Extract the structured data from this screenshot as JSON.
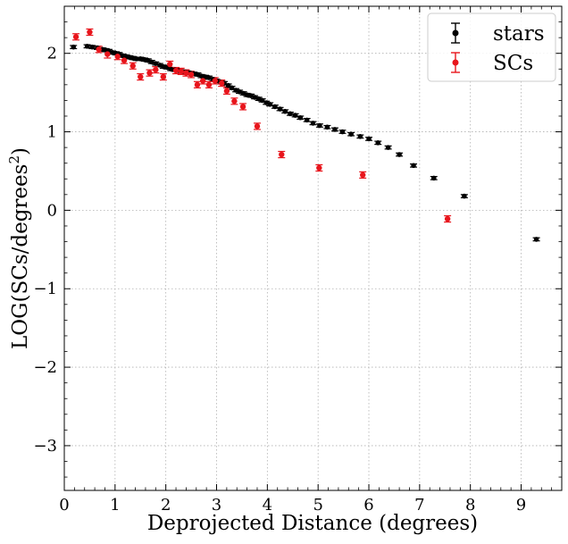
{
  "chart_data": {
    "type": "scatter",
    "xlabel": "Deprojected Distance (degrees)",
    "ylabel_main": "LOG(SCs/degrees",
    "ylabel_sup": "2",
    "ylabel_close": ")",
    "xlim": [
      0,
      9.8
    ],
    "ylim": [
      -3.57,
      2.6
    ],
    "xticks": [
      0,
      1,
      2,
      3,
      4,
      5,
      6,
      7,
      8,
      9
    ],
    "yticks": [
      -3,
      -2,
      -1,
      0,
      1,
      2
    ],
    "xtick_labels": [
      "0",
      "1",
      "2",
      "3",
      "4",
      "5",
      "6",
      "7",
      "8",
      "9"
    ],
    "ytick_labels": [
      "−3",
      "−2",
      "−1",
      "0",
      "1",
      "2"
    ],
    "grid": true,
    "legend_position": "top-right",
    "series": [
      {
        "name": "stars",
        "color": "#000000",
        "points": [
          [
            0.18,
            2.08,
            0.02
          ],
          [
            0.45,
            2.09,
            0.02
          ],
          [
            0.55,
            2.08,
            0.02
          ],
          [
            0.65,
            2.07,
            0.02
          ],
          [
            0.75,
            2.05,
            0.02
          ],
          [
            0.82,
            2.04,
            0.02
          ],
          [
            0.88,
            2.03,
            0.02
          ],
          [
            0.95,
            2.01,
            0.02
          ],
          [
            1.02,
            2.0,
            0.02
          ],
          [
            1.08,
            1.99,
            0.02
          ],
          [
            1.15,
            1.97,
            0.02
          ],
          [
            1.22,
            1.96,
            0.02
          ],
          [
            1.28,
            1.95,
            0.02
          ],
          [
            1.35,
            1.94,
            0.02
          ],
          [
            1.42,
            1.93,
            0.02
          ],
          [
            1.5,
            1.93,
            0.02
          ],
          [
            1.58,
            1.92,
            0.02
          ],
          [
            1.65,
            1.91,
            0.02
          ],
          [
            1.72,
            1.89,
            0.02
          ],
          [
            1.8,
            1.87,
            0.02
          ],
          [
            1.88,
            1.85,
            0.02
          ],
          [
            1.95,
            1.83,
            0.02
          ],
          [
            2.03,
            1.82,
            0.02
          ],
          [
            2.1,
            1.8,
            0.02
          ],
          [
            2.18,
            1.79,
            0.02
          ],
          [
            2.25,
            1.78,
            0.02
          ],
          [
            2.33,
            1.77,
            0.02
          ],
          [
            2.4,
            1.76,
            0.02
          ],
          [
            2.48,
            1.75,
            0.02
          ],
          [
            2.55,
            1.74,
            0.02
          ],
          [
            2.63,
            1.73,
            0.02
          ],
          [
            2.7,
            1.71,
            0.02
          ],
          [
            2.78,
            1.7,
            0.02
          ],
          [
            2.85,
            1.69,
            0.02
          ],
          [
            2.93,
            1.67,
            0.02
          ],
          [
            3.0,
            1.65,
            0.02
          ],
          [
            3.08,
            1.63,
            0.02
          ],
          [
            3.15,
            1.62,
            0.02
          ],
          [
            3.23,
            1.59,
            0.02
          ],
          [
            3.3,
            1.56,
            0.02
          ],
          [
            3.38,
            1.53,
            0.02
          ],
          [
            3.45,
            1.51,
            0.02
          ],
          [
            3.53,
            1.49,
            0.02
          ],
          [
            3.6,
            1.47,
            0.02
          ],
          [
            3.68,
            1.46,
            0.02
          ],
          [
            3.75,
            1.44,
            0.02
          ],
          [
            3.83,
            1.42,
            0.02
          ],
          [
            3.9,
            1.4,
            0.02
          ],
          [
            3.98,
            1.37,
            0.02
          ],
          [
            4.05,
            1.35,
            0.02
          ],
          [
            4.15,
            1.32,
            0.02
          ],
          [
            4.25,
            1.29,
            0.02
          ],
          [
            4.35,
            1.26,
            0.02
          ],
          [
            4.45,
            1.23,
            0.02
          ],
          [
            4.55,
            1.21,
            0.02
          ],
          [
            4.65,
            1.18,
            0.02
          ],
          [
            4.78,
            1.15,
            0.02
          ],
          [
            4.9,
            1.11,
            0.02
          ],
          [
            5.03,
            1.08,
            0.02
          ],
          [
            5.18,
            1.06,
            0.02
          ],
          [
            5.33,
            1.03,
            0.02
          ],
          [
            5.48,
            1.0,
            0.02
          ],
          [
            5.65,
            0.97,
            0.02
          ],
          [
            5.83,
            0.94,
            0.02
          ],
          [
            6.0,
            0.91,
            0.02
          ],
          [
            6.18,
            0.86,
            0.02
          ],
          [
            6.38,
            0.8,
            0.02
          ],
          [
            6.6,
            0.71,
            0.02
          ],
          [
            6.88,
            0.57,
            0.02
          ],
          [
            7.28,
            0.41,
            0.02
          ],
          [
            7.88,
            0.18,
            0.02
          ],
          [
            9.3,
            -0.37,
            0.02
          ]
        ]
      },
      {
        "name": "SCs",
        "color": "#e8151c",
        "points": [
          [
            0.23,
            2.21,
            0.04
          ],
          [
            0.5,
            2.27,
            0.04
          ],
          [
            0.68,
            2.05,
            0.04
          ],
          [
            0.85,
            1.99,
            0.05
          ],
          [
            1.05,
            1.96,
            0.04
          ],
          [
            1.18,
            1.91,
            0.04
          ],
          [
            1.35,
            1.84,
            0.04
          ],
          [
            1.5,
            1.7,
            0.04
          ],
          [
            1.68,
            1.75,
            0.04
          ],
          [
            1.8,
            1.79,
            0.04
          ],
          [
            1.95,
            1.7,
            0.04
          ],
          [
            2.08,
            1.86,
            0.04
          ],
          [
            2.2,
            1.78,
            0.04
          ],
          [
            2.3,
            1.77,
            0.04
          ],
          [
            2.4,
            1.75,
            0.04
          ],
          [
            2.5,
            1.73,
            0.04
          ],
          [
            2.62,
            1.6,
            0.04
          ],
          [
            2.73,
            1.65,
            0.04
          ],
          [
            2.85,
            1.6,
            0.04
          ],
          [
            2.97,
            1.65,
            0.04
          ],
          [
            3.1,
            1.62,
            0.04
          ],
          [
            3.2,
            1.52,
            0.04
          ],
          [
            3.35,
            1.39,
            0.04
          ],
          [
            3.52,
            1.32,
            0.04
          ],
          [
            3.8,
            1.07,
            0.04
          ],
          [
            4.28,
            0.71,
            0.04
          ],
          [
            5.02,
            0.54,
            0.04
          ],
          [
            5.88,
            0.45,
            0.04
          ],
          [
            7.55,
            -0.11,
            0.04
          ]
        ]
      }
    ]
  }
}
